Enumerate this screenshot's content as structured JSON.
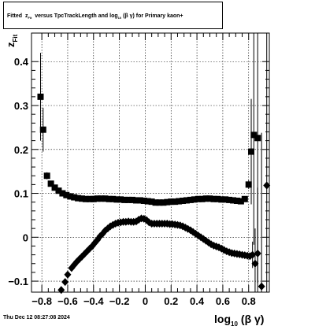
{
  "chart_data": {
    "type": "scatter",
    "title": {
      "part1": "Fitted",
      "z_main": "z",
      "z_sub": "Fit",
      "part2": "versus TpcTrackLength and log",
      "log_sub": "10",
      "part3": "(β γ) for Primary kaon+"
    },
    "xlabel": {
      "main": "log",
      "sub": "10",
      "rest": "(β γ)"
    },
    "ylabel": {
      "main": "z",
      "sub": "Fit"
    },
    "xlim": [
      -0.88,
      0.96
    ],
    "ylim": [
      -0.125,
      0.465
    ],
    "x_ticks": [
      {
        "v": -0.8,
        "label": "−0.8"
      },
      {
        "v": -0.6,
        "label": "−0.6"
      },
      {
        "v": -0.4,
        "label": "−0.4"
      },
      {
        "v": -0.2,
        "label": "−0.2"
      },
      {
        "v": 0.0,
        "label": "0"
      },
      {
        "v": 0.2,
        "label": "0.2"
      },
      {
        "v": 0.4,
        "label": "0.4"
      },
      {
        "v": 0.6,
        "label": "0.6"
      },
      {
        "v": 0.8,
        "label": "0.8"
      }
    ],
    "y_ticks": [
      {
        "v": -0.1,
        "label": "−0.1"
      },
      {
        "v": 0.0,
        "label": "0"
      },
      {
        "v": 0.1,
        "label": "0.1"
      },
      {
        "v": 0.2,
        "label": "0.2"
      },
      {
        "v": 0.3,
        "label": "0.3"
      },
      {
        "v": 0.4,
        "label": "0.4"
      }
    ],
    "grid": true,
    "series": [
      {
        "marker": "square",
        "color": "#000000",
        "points": [
          {
            "x": -0.81,
            "y": 0.32,
            "err": 0.1
          },
          {
            "x": -0.79,
            "y": 0.245,
            "err": 0.05
          },
          {
            "x": -0.76,
            "y": 0.14,
            "err": 0.008
          },
          {
            "x": -0.73,
            "y": 0.122
          },
          {
            "x": -0.7,
            "y": 0.113
          },
          {
            "x": -0.67,
            "y": 0.106
          },
          {
            "x": -0.64,
            "y": 0.1
          },
          {
            "x": -0.61,
            "y": 0.096
          },
          {
            "x": -0.58,
            "y": 0.093
          },
          {
            "x": -0.55,
            "y": 0.091
          },
          {
            "x": -0.52,
            "y": 0.089
          },
          {
            "x": -0.49,
            "y": 0.088
          },
          {
            "x": -0.46,
            "y": 0.087
          },
          {
            "x": -0.43,
            "y": 0.087
          },
          {
            "x": -0.4,
            "y": 0.087
          },
          {
            "x": -0.37,
            "y": 0.088
          },
          {
            "x": -0.34,
            "y": 0.088
          },
          {
            "x": -0.31,
            "y": 0.088
          },
          {
            "x": -0.28,
            "y": 0.087
          },
          {
            "x": -0.25,
            "y": 0.087
          },
          {
            "x": -0.22,
            "y": 0.086
          },
          {
            "x": -0.19,
            "y": 0.086
          },
          {
            "x": -0.16,
            "y": 0.085
          },
          {
            "x": -0.13,
            "y": 0.085
          },
          {
            "x": -0.1,
            "y": 0.085
          },
          {
            "x": -0.07,
            "y": 0.084
          },
          {
            "x": -0.04,
            "y": 0.084
          },
          {
            "x": -0.01,
            "y": 0.083
          },
          {
            "x": 0.02,
            "y": 0.082
          },
          {
            "x": 0.05,
            "y": 0.081
          },
          {
            "x": 0.08,
            "y": 0.079
          },
          {
            "x": 0.11,
            "y": 0.079
          },
          {
            "x": 0.14,
            "y": 0.079
          },
          {
            "x": 0.17,
            "y": 0.08
          },
          {
            "x": 0.2,
            "y": 0.081
          },
          {
            "x": 0.23,
            "y": 0.081
          },
          {
            "x": 0.26,
            "y": 0.082
          },
          {
            "x": 0.29,
            "y": 0.083
          },
          {
            "x": 0.32,
            "y": 0.084
          },
          {
            "x": 0.35,
            "y": 0.085
          },
          {
            "x": 0.38,
            "y": 0.086
          },
          {
            "x": 0.41,
            "y": 0.087
          },
          {
            "x": 0.44,
            "y": 0.087
          },
          {
            "x": 0.47,
            "y": 0.088
          },
          {
            "x": 0.5,
            "y": 0.088
          },
          {
            "x": 0.53,
            "y": 0.087
          },
          {
            "x": 0.56,
            "y": 0.087
          },
          {
            "x": 0.59,
            "y": 0.086
          },
          {
            "x": 0.62,
            "y": 0.086
          },
          {
            "x": 0.65,
            "y": 0.085
          },
          {
            "x": 0.68,
            "y": 0.084
          },
          {
            "x": 0.71,
            "y": 0.083
          },
          {
            "x": 0.74,
            "y": 0.082
          },
          {
            "x": 0.77,
            "y": 0.087
          },
          {
            "x": 0.8,
            "y": 0.12,
            "err": 0.01
          },
          {
            "x": 0.82,
            "y": 0.195,
            "err": 0.12
          },
          {
            "x": 0.84,
            "y": 0.233,
            "err": 0.25
          },
          {
            "x": 0.87,
            "y": 0.226,
            "err": 0.33
          }
        ]
      },
      {
        "marker": "diamond",
        "color": "#000000",
        "points": [
          {
            "x": -0.65,
            "y": -0.12,
            "err": 0.005
          },
          {
            "x": -0.62,
            "y": -0.102
          },
          {
            "x": -0.6,
            "y": -0.085
          },
          {
            "x": -0.57,
            "y": -0.07
          },
          {
            "x": -0.55,
            "y": -0.063
          },
          {
            "x": -0.53,
            "y": -0.056
          },
          {
            "x": -0.51,
            "y": -0.05
          },
          {
            "x": -0.49,
            "y": -0.044
          },
          {
            "x": -0.47,
            "y": -0.038
          },
          {
            "x": -0.45,
            "y": -0.032
          },
          {
            "x": -0.43,
            "y": -0.026
          },
          {
            "x": -0.41,
            "y": -0.02
          },
          {
            "x": -0.39,
            "y": -0.013
          },
          {
            "x": -0.37,
            "y": -0.006
          },
          {
            "x": -0.35,
            "y": 0.002
          },
          {
            "x": -0.33,
            "y": 0.008
          },
          {
            "x": -0.31,
            "y": 0.015
          },
          {
            "x": -0.29,
            "y": 0.02
          },
          {
            "x": -0.27,
            "y": 0.025
          },
          {
            "x": -0.25,
            "y": 0.028
          },
          {
            "x": -0.23,
            "y": 0.031
          },
          {
            "x": -0.21,
            "y": 0.033
          },
          {
            "x": -0.19,
            "y": 0.034
          },
          {
            "x": -0.17,
            "y": 0.035
          },
          {
            "x": -0.15,
            "y": 0.035
          },
          {
            "x": -0.13,
            "y": 0.036
          },
          {
            "x": -0.11,
            "y": 0.035
          },
          {
            "x": -0.09,
            "y": 0.035
          },
          {
            "x": -0.07,
            "y": 0.036
          },
          {
            "x": -0.05,
            "y": 0.04
          },
          {
            "x": -0.03,
            "y": 0.043
          },
          {
            "x": -0.01,
            "y": 0.042
          },
          {
            "x": 0.01,
            "y": 0.039
          },
          {
            "x": 0.03,
            "y": 0.034
          },
          {
            "x": 0.05,
            "y": 0.031
          },
          {
            "x": 0.07,
            "y": 0.031
          },
          {
            "x": 0.09,
            "y": 0.031
          },
          {
            "x": 0.11,
            "y": 0.031
          },
          {
            "x": 0.13,
            "y": 0.031
          },
          {
            "x": 0.15,
            "y": 0.031
          },
          {
            "x": 0.17,
            "y": 0.031
          },
          {
            "x": 0.19,
            "y": 0.03
          },
          {
            "x": 0.21,
            "y": 0.03
          },
          {
            "x": 0.23,
            "y": 0.029
          },
          {
            "x": 0.25,
            "y": 0.028
          },
          {
            "x": 0.27,
            "y": 0.027
          },
          {
            "x": 0.29,
            "y": 0.025
          },
          {
            "x": 0.31,
            "y": 0.022
          },
          {
            "x": 0.33,
            "y": 0.019
          },
          {
            "x": 0.35,
            "y": 0.016
          },
          {
            "x": 0.37,
            "y": 0.012
          },
          {
            "x": 0.39,
            "y": 0.008
          },
          {
            "x": 0.41,
            "y": 0.004
          },
          {
            "x": 0.43,
            "y": 0.0
          },
          {
            "x": 0.45,
            "y": -0.004
          },
          {
            "x": 0.47,
            "y": -0.008
          },
          {
            "x": 0.49,
            "y": -0.012
          },
          {
            "x": 0.51,
            "y": -0.016
          },
          {
            "x": 0.53,
            "y": -0.019
          },
          {
            "x": 0.55,
            "y": -0.021
          },
          {
            "x": 0.57,
            "y": -0.023
          },
          {
            "x": 0.59,
            "y": -0.026
          },
          {
            "x": 0.61,
            "y": -0.029
          },
          {
            "x": 0.63,
            "y": -0.032
          },
          {
            "x": 0.65,
            "y": -0.034
          },
          {
            "x": 0.67,
            "y": -0.036
          },
          {
            "x": 0.69,
            "y": -0.037
          },
          {
            "x": 0.71,
            "y": -0.038
          },
          {
            "x": 0.73,
            "y": -0.039
          },
          {
            "x": 0.75,
            "y": -0.04
          },
          {
            "x": 0.77,
            "y": -0.041
          },
          {
            "x": 0.79,
            "y": -0.042
          },
          {
            "x": 0.81,
            "y": -0.043
          },
          {
            "x": 0.83,
            "y": -0.04,
            "err": 0.03
          },
          {
            "x": 0.85,
            "y": -0.06,
            "err": 0.08
          },
          {
            "x": 0.87,
            "y": -0.037,
            "err": 0.15
          },
          {
            "x": 0.9,
            "y": -0.112,
            "err": 0.35
          },
          {
            "x": 0.94,
            "y": 0.118,
            "err": 0.45
          }
        ]
      }
    ]
  },
  "footer": {
    "timestamp": "Thu Dec 12 08:27:08 2024"
  }
}
